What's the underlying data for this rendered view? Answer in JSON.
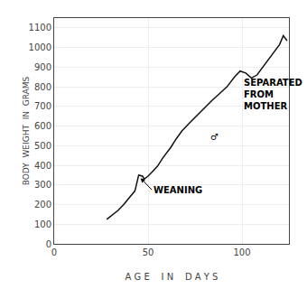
{
  "chart_data": {
    "type": "line",
    "xlabel": "A G E    I N    D A Y S",
    "ylabel": "BODY  WEIGHT  IN  GRAMS",
    "x": [
      28,
      31,
      34,
      37,
      39,
      41,
      43,
      45,
      47,
      48,
      50,
      52,
      55,
      58,
      62,
      65,
      68,
      72,
      76,
      80,
      84,
      88,
      92,
      96,
      99,
      102,
      105,
      108,
      111,
      114,
      117,
      120,
      122,
      124
    ],
    "values": [
      125,
      148,
      170,
      200,
      225,
      248,
      270,
      350,
      345,
      330,
      345,
      365,
      395,
      440,
      490,
      535,
      575,
      615,
      655,
      695,
      730,
      765,
      800,
      850,
      880,
      870,
      845,
      860,
      900,
      940,
      975,
      1015,
      1060,
      1035
    ],
    "color": "#111111",
    "xlim": [
      0,
      125
    ],
    "ylim": [
      0,
      1150
    ],
    "xticks": [
      0,
      50,
      100
    ],
    "yticks": [
      0,
      100,
      200,
      300,
      400,
      500,
      600,
      700,
      800,
      900,
      1000,
      1100
    ],
    "grid": true,
    "annotations": [
      {
        "text": "WEANING",
        "x": 46,
        "y": 335,
        "text_x": 52,
        "text_y": 275
      },
      {
        "text": "SEPARATED\nFROM\nMOTHER",
        "x": 100,
        "y": 760
      },
      {
        "text": "♂",
        "x": 82,
        "y": 545
      }
    ]
  }
}
